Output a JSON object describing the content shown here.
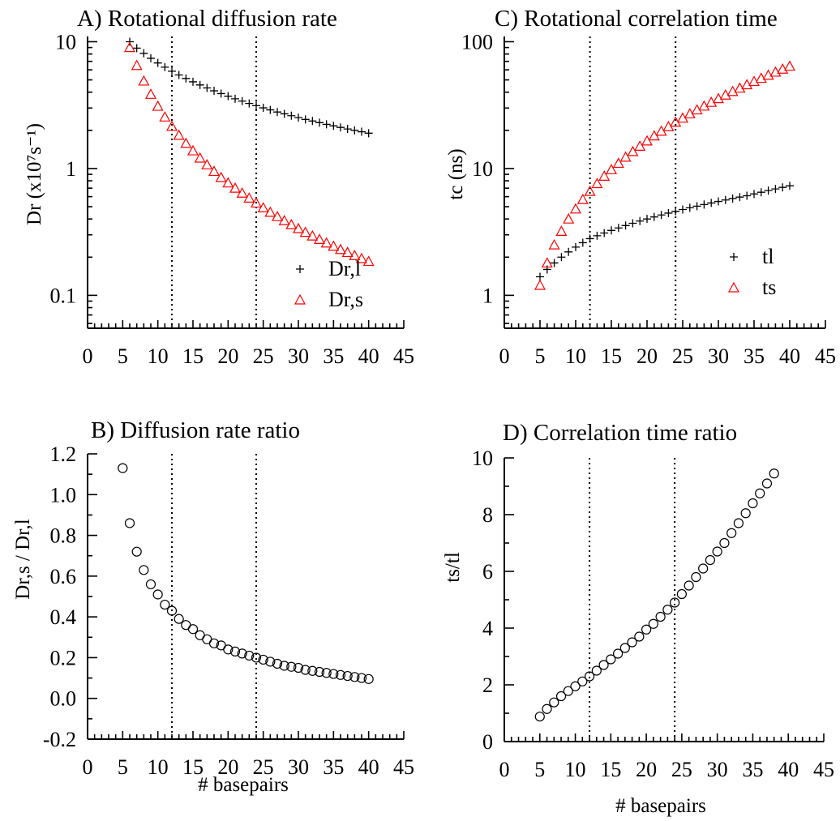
{
  "xlabel": "# basepairs",
  "colors": {
    "series_l": "#000000",
    "series_s": "#ff0000",
    "ratio": "#000000",
    "reference_line": "#000000"
  },
  "chart_data": [
    {
      "id": "A",
      "type": "scatter",
      "title": "A) Rotational diffusion rate",
      "xlabel": "",
      "ylabel": "Dr (x10⁷s⁻¹)",
      "yscale": "log",
      "xlim": [
        0,
        45
      ],
      "ylim": [
        0.055,
        11
      ],
      "xticks": [
        "0",
        "5",
        "10",
        "15",
        "20",
        "25",
        "30",
        "35",
        "40",
        "45"
      ],
      "xtick_values": [
        0,
        5,
        10,
        15,
        20,
        25,
        30,
        35,
        40,
        45
      ],
      "yticks": [
        "0.1",
        "1",
        "10"
      ],
      "ytick_values": [
        0.1,
        1,
        10
      ],
      "reference_lines_x": [
        12,
        24
      ],
      "legend_position": "bottom-right",
      "series": [
        {
          "name": "Dr,l",
          "marker": "plus",
          "color": "#000000",
          "x": [
            6,
            7,
            8,
            9,
            10,
            11,
            12,
            13,
            14,
            15,
            16,
            17,
            18,
            19,
            20,
            21,
            22,
            23,
            24,
            25,
            26,
            27,
            28,
            29,
            30,
            31,
            32,
            33,
            34,
            35,
            36,
            37,
            38,
            39,
            40
          ],
          "y": [
            10,
            8.9,
            8.1,
            7.4,
            6.8,
            6.3,
            5.85,
            5.47,
            5.13,
            4.83,
            4.56,
            4.32,
            4.1,
            3.9,
            3.72,
            3.55,
            3.4,
            3.26,
            3.13,
            3.01,
            2.9,
            2.79,
            2.7,
            2.61,
            2.52,
            2.44,
            2.37,
            2.3,
            2.23,
            2.17,
            2.11,
            2.05,
            2.0,
            1.95,
            1.9
          ]
        },
        {
          "name": "Dr,s",
          "marker": "triangle",
          "color": "#ff0000",
          "x": [
            6,
            7,
            8,
            9,
            10,
            11,
            12,
            13,
            14,
            15,
            16,
            17,
            18,
            19,
            20,
            21,
            22,
            23,
            24,
            25,
            26,
            27,
            28,
            29,
            30,
            31,
            32,
            33,
            34,
            35,
            36,
            37,
            38,
            39,
            40
          ],
          "y": [
            9.0,
            6.5,
            4.9,
            3.85,
            3.1,
            2.55,
            2.15,
            1.83,
            1.58,
            1.38,
            1.21,
            1.07,
            0.95,
            0.85,
            0.77,
            0.7,
            0.64,
            0.585,
            0.535,
            0.49,
            0.452,
            0.418,
            0.388,
            0.361,
            0.336,
            0.314,
            0.294,
            0.276,
            0.259,
            0.244,
            0.23,
            0.218,
            0.206,
            0.195,
            0.185
          ]
        }
      ]
    },
    {
      "id": "C",
      "type": "scatter",
      "title": "C)  Rotational correlation time",
      "xlabel": "",
      "ylabel": "tc (ns)",
      "yscale": "log",
      "xlim": [
        0,
        45
      ],
      "ylim": [
        0.55,
        110
      ],
      "xticks": [
        "0",
        "5",
        "10",
        "15",
        "20",
        "25",
        "30",
        "35",
        "40",
        "45"
      ],
      "xtick_values": [
        0,
        5,
        10,
        15,
        20,
        25,
        30,
        35,
        40,
        45
      ],
      "yticks": [
        "1",
        "10",
        "100"
      ],
      "ytick_values": [
        1,
        10,
        100
      ],
      "reference_lines_x": [
        12,
        24
      ],
      "legend_position": "bottom-right",
      "series": [
        {
          "name": "tl",
          "marker": "plus",
          "color": "#000000",
          "x": [
            5,
            6,
            7,
            8,
            9,
            10,
            11,
            12,
            13,
            14,
            15,
            16,
            17,
            18,
            19,
            20,
            21,
            22,
            23,
            24,
            25,
            26,
            27,
            28,
            29,
            30,
            31,
            32,
            33,
            34,
            35,
            36,
            37,
            38,
            39,
            40
          ],
          "y": [
            1.4,
            1.6,
            1.8,
            2.0,
            2.2,
            2.4,
            2.6,
            2.8,
            2.95,
            3.1,
            3.25,
            3.4,
            3.55,
            3.7,
            3.85,
            4.0,
            4.15,
            4.3,
            4.45,
            4.6,
            4.75,
            4.9,
            5.05,
            5.2,
            5.35,
            5.5,
            5.65,
            5.8,
            5.95,
            6.1,
            6.3,
            6.5,
            6.7,
            6.9,
            7.1,
            7.3
          ]
        },
        {
          "name": "ts",
          "marker": "triangle",
          "color": "#ff0000",
          "x": [
            5,
            6,
            7,
            8,
            9,
            10,
            11,
            12,
            13,
            14,
            15,
            16,
            17,
            18,
            19,
            20,
            21,
            22,
            23,
            24,
            25,
            26,
            27,
            28,
            29,
            30,
            31,
            32,
            33,
            34,
            35,
            36,
            37,
            38,
            39,
            40
          ],
          "y": [
            1.2,
            1.8,
            2.5,
            3.2,
            4.0,
            4.8,
            5.7,
            6.6,
            7.6,
            8.7,
            9.8,
            11.0,
            12.3,
            13.6,
            15.0,
            16.5,
            18.1,
            19.7,
            21.4,
            23.2,
            25.0,
            27.0,
            29.0,
            31.1,
            33.3,
            35.6,
            38.0,
            40.5,
            43.1,
            45.8,
            48.6,
            51.5,
            54.5,
            57.6,
            60.8,
            64.1
          ]
        }
      ]
    },
    {
      "id": "B",
      "type": "scatter",
      "title": "B)  Diffusion rate ratio",
      "xlabel": "# basepairs",
      "ylabel": "Dr,s / Dr,l",
      "yscale": "linear",
      "xlim": [
        0,
        45
      ],
      "ylim": [
        -0.2,
        1.2
      ],
      "xticks": [
        "0",
        "5",
        "10",
        "15",
        "20",
        "25",
        "30",
        "35",
        "40",
        "45"
      ],
      "xtick_values": [
        0,
        5,
        10,
        15,
        20,
        25,
        30,
        35,
        40,
        45
      ],
      "yticks": [
        "-0.2",
        "0.0",
        "0.2",
        "0.4",
        "0.6",
        "0.8",
        "1.0",
        "1.2"
      ],
      "ytick_values": [
        -0.2,
        0.0,
        0.2,
        0.4,
        0.6,
        0.8,
        1.0,
        1.2
      ],
      "reference_lines_x": [
        12,
        24
      ],
      "series": [
        {
          "name": "",
          "marker": "circle",
          "color": "#000000",
          "x": [
            5,
            6,
            7,
            8,
            9,
            10,
            11,
            12,
            13,
            14,
            15,
            16,
            17,
            18,
            19,
            20,
            21,
            22,
            23,
            24,
            25,
            26,
            27,
            28,
            29,
            30,
            31,
            32,
            33,
            34,
            35,
            36,
            37,
            38,
            39,
            40
          ],
          "y": [
            1.13,
            0.86,
            0.72,
            0.63,
            0.56,
            0.51,
            0.46,
            0.43,
            0.39,
            0.36,
            0.34,
            0.31,
            0.29,
            0.27,
            0.26,
            0.24,
            0.23,
            0.22,
            0.21,
            0.2,
            0.19,
            0.18,
            0.17,
            0.16,
            0.155,
            0.15,
            0.14,
            0.135,
            0.13,
            0.125,
            0.12,
            0.115,
            0.11,
            0.105,
            0.1,
            0.095
          ]
        }
      ]
    },
    {
      "id": "D",
      "type": "scatter",
      "title": "D)  Correlation time ratio",
      "xlabel": "# basepairs",
      "ylabel": "ts/tl",
      "yscale": "linear",
      "xlim": [
        0,
        45
      ],
      "ylim": [
        0,
        10
      ],
      "xticks": [
        "0",
        "5",
        "10",
        "15",
        "20",
        "25",
        "30",
        "35",
        "40",
        "45"
      ],
      "xtick_values": [
        0,
        5,
        10,
        15,
        20,
        25,
        30,
        35,
        40,
        45
      ],
      "yticks": [
        "0",
        "2",
        "4",
        "6",
        "8",
        "10"
      ],
      "ytick_values": [
        0,
        2,
        4,
        6,
        8,
        10
      ],
      "reference_lines_x": [
        12,
        24
      ],
      "series": [
        {
          "name": "",
          "marker": "circle",
          "color": "#000000",
          "x": [
            5,
            6,
            7,
            8,
            9,
            10,
            11,
            12,
            13,
            14,
            15,
            16,
            17,
            18,
            19,
            20,
            21,
            22,
            23,
            24,
            25,
            26,
            27,
            28,
            29,
            30,
            31,
            32,
            33,
            34,
            35,
            36,
            37,
            38
          ],
          "y": [
            0.88,
            1.15,
            1.38,
            1.6,
            1.78,
            1.95,
            2.12,
            2.3,
            2.5,
            2.7,
            2.9,
            3.1,
            3.3,
            3.5,
            3.7,
            3.95,
            4.15,
            4.4,
            4.65,
            4.9,
            5.2,
            5.5,
            5.8,
            6.1,
            6.4,
            6.7,
            7.0,
            7.35,
            7.7,
            8.05,
            8.4,
            8.75,
            9.1,
            9.45
          ]
        }
      ]
    }
  ]
}
